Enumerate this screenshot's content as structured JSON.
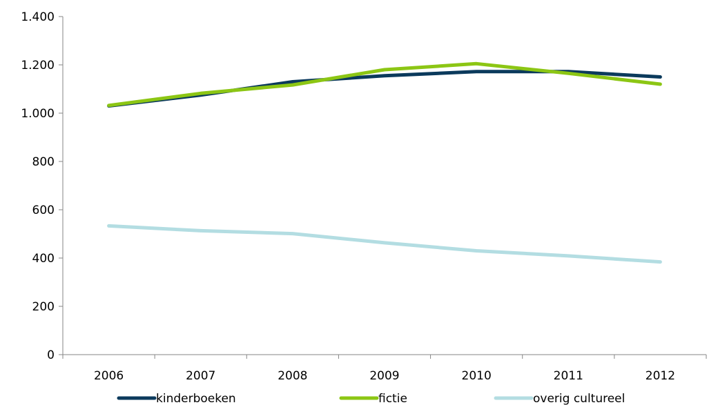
{
  "chart_data": {
    "type": "line",
    "categories": [
      "2006",
      "2007",
      "2008",
      "2009",
      "2010",
      "2011",
      "2012"
    ],
    "series": [
      {
        "name": "kinderboeken",
        "color": "#0b3a5c",
        "values": [
          1030,
          1075,
          1130,
          1155,
          1172,
          1172,
          1150
        ]
      },
      {
        "name": "fictie",
        "color": "#8cc614",
        "values": [
          1032,
          1082,
          1117,
          1180,
          1205,
          1165,
          1120
        ]
      },
      {
        "name": "overig cultureel",
        "color": "#b3dde2",
        "values": [
          533,
          513,
          501,
          463,
          430,
          409,
          384
        ]
      }
    ],
    "ylim": [
      0,
      1400
    ],
    "y_ticks": [
      0,
      200,
      400,
      600,
      800,
      1000,
      1200,
      1400
    ],
    "y_tick_labels": [
      "0",
      "200",
      "400",
      "600",
      "800",
      "1.000",
      "1.200",
      "1.400"
    ],
    "grid": false,
    "legend_position": "bottom"
  }
}
